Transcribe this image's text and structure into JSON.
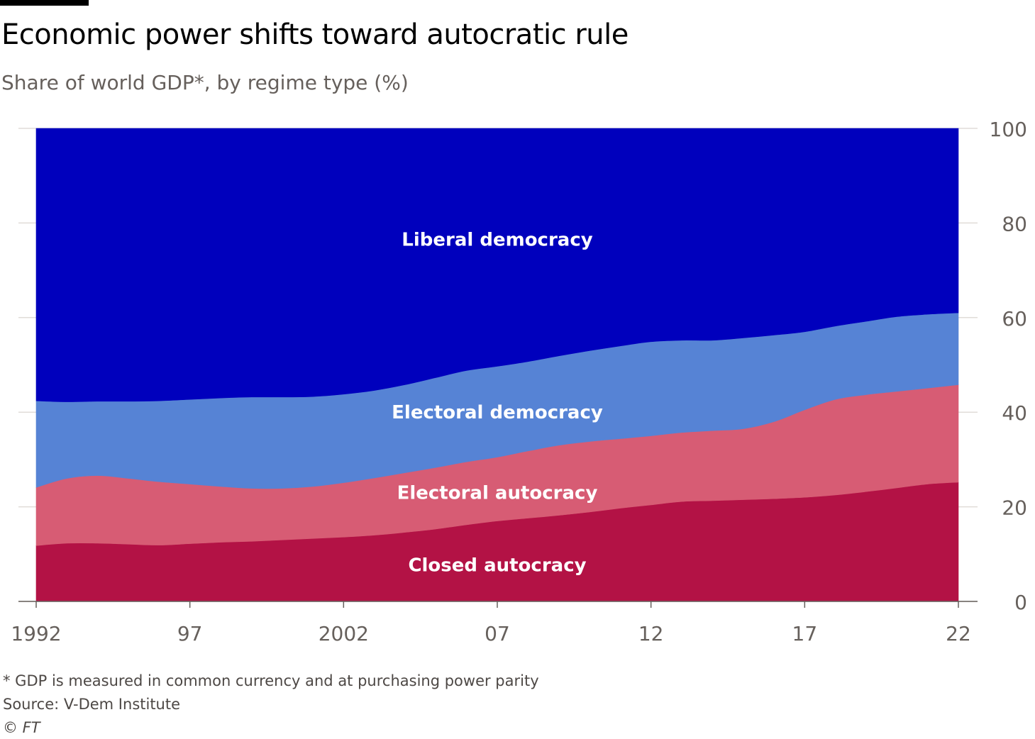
{
  "title": "Economic power shifts toward autocratic rule",
  "subtitle": "Share of world GDP*, by regime type (%)",
  "footnote": "* GDP is measured in common currency and at purchasing power parity",
  "source": "Source: V-Dem Institute",
  "copyright": "© FT",
  "colors": {
    "closed_autocracy": "#b31245",
    "electoral_autocracy": "#d75c74",
    "electoral_democracy": "#5683d5",
    "liberal_democracy": "#0000bd",
    "axis": "#66605c",
    "grid": "#e0dcd8"
  },
  "chart_data": {
    "type": "area",
    "stacked": true,
    "x": [
      1992,
      1993,
      1994,
      1995,
      1996,
      1997,
      1998,
      1999,
      2000,
      2001,
      2002,
      2003,
      2004,
      2005,
      2006,
      2007,
      2008,
      2009,
      2010,
      2011,
      2012,
      2013,
      2014,
      2015,
      2016,
      2017,
      2018,
      2019,
      2020,
      2021,
      2022
    ],
    "x_tick_values": [
      1992,
      1997,
      2002,
      2007,
      2012,
      2017,
      2022
    ],
    "x_tick_labels": [
      "1992",
      "97",
      "2002",
      "07",
      "12",
      "17",
      "22"
    ],
    "ylim": [
      0,
      100
    ],
    "y_ticks": [
      0,
      20,
      40,
      60,
      80,
      100
    ],
    "y_axis_position": "right",
    "grid": true,
    "series": [
      {
        "name": "Closed autocracy",
        "key": "closed_autocracy",
        "values": [
          11.8,
          12.3,
          12.3,
          12.1,
          11.9,
          12.2,
          12.5,
          12.7,
          13.0,
          13.3,
          13.6,
          14.0,
          14.6,
          15.3,
          16.2,
          17.0,
          17.6,
          18.2,
          18.9,
          19.7,
          20.4,
          21.1,
          21.3,
          21.5,
          21.7,
          22.0,
          22.5,
          23.2,
          24.0,
          24.8,
          25.2
        ]
      },
      {
        "name": "Electoral autocracy",
        "key": "electoral_autocracy",
        "values": [
          12.3,
          13.7,
          14.3,
          13.9,
          13.4,
          12.6,
          11.8,
          11.2,
          10.9,
          11.0,
          11.5,
          12.1,
          12.6,
          13.0,
          13.3,
          13.5,
          14.2,
          14.8,
          14.9,
          14.7,
          14.6,
          14.6,
          14.8,
          15.0,
          16.3,
          18.5,
          20.2,
          20.5,
          20.4,
          20.3,
          20.6
        ]
      },
      {
        "name": "Electoral democracy",
        "key": "electoral_democracy",
        "values": [
          18.3,
          16.2,
          15.7,
          16.3,
          17.1,
          17.9,
          18.7,
          19.3,
          19.3,
          19.0,
          18.7,
          18.5,
          18.6,
          19.0,
          19.3,
          19.2,
          18.9,
          18.9,
          19.2,
          19.6,
          19.9,
          19.5,
          19.1,
          19.2,
          18.3,
          16.5,
          15.5,
          15.5,
          15.8,
          15.6,
          15.2
        ]
      },
      {
        "name": "Liberal democracy",
        "key": "liberal_democracy",
        "values": [
          57.6,
          57.8,
          57.7,
          57.7,
          57.6,
          57.3,
          57.0,
          56.8,
          56.8,
          56.7,
          56.2,
          55.4,
          54.2,
          52.7,
          51.2,
          50.3,
          49.3,
          48.1,
          47.0,
          46.0,
          45.1,
          44.8,
          44.8,
          44.3,
          43.7,
          43.0,
          41.8,
          40.8,
          39.8,
          39.3,
          39.0
        ]
      }
    ],
    "labels": [
      {
        "text": "Liberal democracy",
        "series": "liberal_democracy",
        "x": 2007,
        "y": 76.5
      },
      {
        "text": "Electoral democracy",
        "series": "electoral_democracy",
        "x": 2007,
        "y": 40
      },
      {
        "text": "Electoral autocracy",
        "series": "electoral_autocracy",
        "x": 2007,
        "y": 23
      },
      {
        "text": "Closed autocracy",
        "series": "closed_autocracy",
        "x": 2007,
        "y": 7.7
      }
    ]
  }
}
